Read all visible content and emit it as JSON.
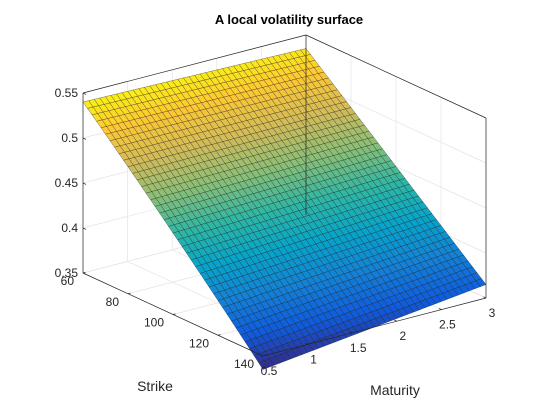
{
  "chart_data": {
    "type": "surface",
    "title": "A local volatility surface",
    "xlabel": "Maturity",
    "ylabel": "Strike",
    "zlabel": "",
    "x_ticks": [
      0.5,
      1,
      1.5,
      2,
      2.5,
      3
    ],
    "x_tick_labels": [
      "0.5",
      "1",
      "1.5",
      "2",
      "2.5",
      "3"
    ],
    "y_ticks": [
      60,
      80,
      100,
      120,
      140
    ],
    "y_tick_labels": [
      "60",
      "80",
      "100",
      "120",
      "140"
    ],
    "z_ticks": [
      0.35,
      0.4,
      0.45,
      0.5,
      0.55
    ],
    "z_tick_labels": [
      "0.35",
      "0.4",
      "0.45",
      "0.5",
      "0.55"
    ],
    "xlim": [
      0.5,
      3
    ],
    "ylim": [
      60,
      140
    ],
    "zlim": [
      0.35,
      0.55
    ],
    "grid": true,
    "colormap": "parula",
    "colormap_stops": [
      "#352a87",
      "#0f5cdd",
      "#1481d6",
      "#06a4ca",
      "#2eb7a4",
      "#87bf77",
      "#d1bb59",
      "#fec832",
      "#f9fb0e"
    ],
    "corner_values": {
      "maturity_0.5_strike_60": 0.54,
      "maturity_3_strike_60": 0.535,
      "maturity_0.5_strike_140": 0.335,
      "maturity_3_strike_140": 0.365
    },
    "grid_size": {
      "maturity_points": 41,
      "strike_points": 41
    }
  }
}
